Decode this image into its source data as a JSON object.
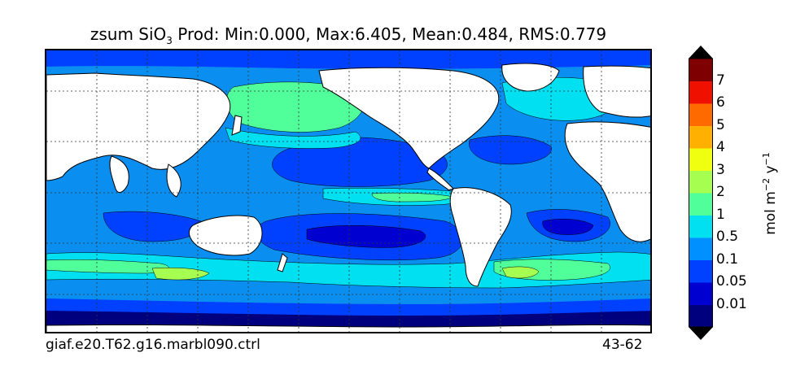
{
  "title": {
    "prefix": "zsum SiO",
    "sub": "3",
    "rest": " Prod: Min:0.000, Max:6.405, Mean:0.484, RMS:0.779"
  },
  "footer": {
    "case_name": "giaf.e20.T62.g16.marbl090.ctrl",
    "years": "43-62"
  },
  "colorbar": {
    "unit_main": "mol m",
    "unit_exp1": "−2",
    "unit_mid": " y",
    "unit_exp2": "−1",
    "levels": [
      "0.01",
      "0.05",
      "0.1",
      "0.5",
      "1",
      "2",
      "3",
      "4",
      "5",
      "6",
      "7"
    ],
    "colors": [
      "#00007f",
      "#0000d0",
      "#0040ff",
      "#0090ff",
      "#00e0f0",
      "#50ff9a",
      "#a6ff50",
      "#f0ff10",
      "#ffb000",
      "#ff6a00",
      "#f01000",
      "#7f0000"
    ],
    "under_color": "#000000",
    "over_color": "#000000"
  },
  "map": {
    "land_color": "#ffffff",
    "coast_color": "#000000",
    "grid_style": "dotted",
    "projection": "cylindrical"
  }
}
